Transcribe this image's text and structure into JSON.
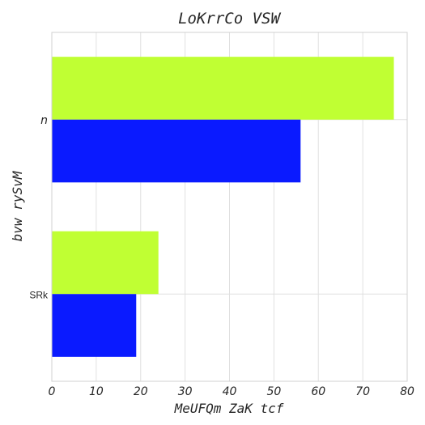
{
  "chart_data": {
    "type": "bar",
    "orientation": "horizontal",
    "title": "LoKrrCo VSW",
    "xlabel": "MeUFQm ZaK tcf",
    "ylabel": "bvw rySvM",
    "categories": [
      "n",
      "SRk"
    ],
    "series": [
      {
        "values": [
          77,
          24
        ],
        "color": "#c0ff33"
      },
      {
        "values": [
          56,
          19
        ],
        "color": "#0a1aff"
      }
    ],
    "xlim": [
      0,
      80
    ],
    "xticks": [
      "0",
      "10",
      "20",
      "30",
      "40",
      "50",
      "60",
      "70",
      "80"
    ],
    "grid": true
  }
}
